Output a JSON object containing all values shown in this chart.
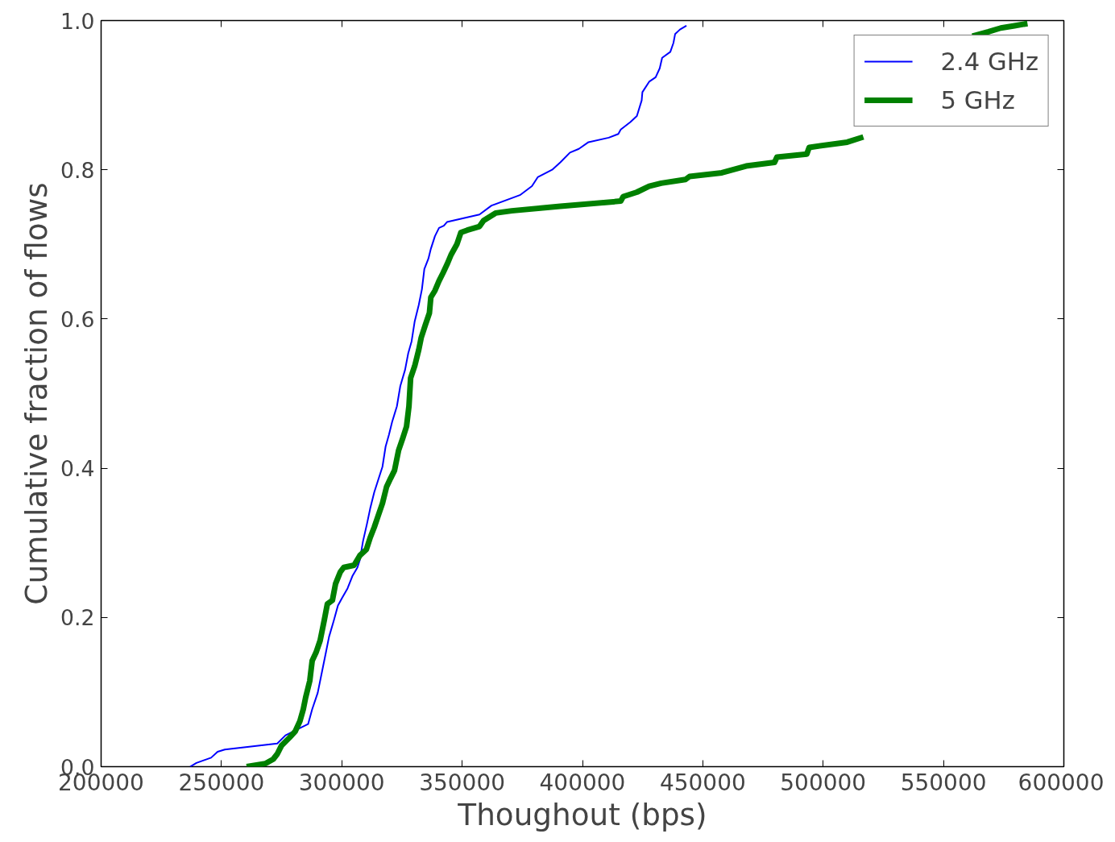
{
  "chart_data": {
    "type": "line",
    "xlabel": "Thoughout (bps)",
    "ylabel": "Cumulative fraction of flows",
    "xlim": [
      200000,
      600000
    ],
    "ylim": [
      0,
      1.0
    ],
    "xticks": [
      200000,
      250000,
      300000,
      350000,
      400000,
      450000,
      500000,
      550000,
      600000
    ],
    "yticks": [
      {
        "value": 0,
        "label": "0.0"
      },
      {
        "value": 0.2,
        "label": "0.2"
      },
      {
        "value": 0.4,
        "label": "0.4"
      },
      {
        "value": 0.6,
        "label": "0.6"
      },
      {
        "value": 0.8,
        "label": "0.8"
      },
      {
        "value": 1.0,
        "label": "1.0"
      }
    ],
    "grid": false,
    "legend": "top right",
    "marker": "none",
    "line_style": "solid",
    "series": [
      {
        "name": "2.4 GHz",
        "color": "#0000ff",
        "x": [
          237000,
          239600,
          245700,
          248400,
          251400,
          273200,
          276600,
          281600,
          286000,
          287700,
          290000,
          291700,
          293400,
          294700,
          296700,
          298400,
          300100,
          302400,
          304500,
          306500,
          307500,
          308800,
          310500,
          311800,
          313500,
          314900,
          316900,
          318200,
          319600,
          320900,
          322900,
          324300,
          326300,
          327600,
          329000,
          330300,
          332000,
          333300,
          334300,
          336000,
          337000,
          338700,
          340400,
          342400,
          343700,
          357200,
          362200,
          374000,
          379000,
          381400,
          387400,
          390800,
          394800,
          398500,
          402500,
          410900,
          414900,
          415900,
          419900,
          422600,
          424600,
          424900,
          427700,
          430400,
          432100,
          433100,
          436500,
          437800,
          438500,
          440500,
          443200
        ],
        "values": [
          0,
          0.005,
          0.012,
          0.02,
          0.023,
          0.031,
          0.042,
          0.05,
          0.057,
          0.077,
          0.099,
          0.126,
          0.153,
          0.174,
          0.196,
          0.216,
          0.226,
          0.239,
          0.256,
          0.267,
          0.277,
          0.302,
          0.326,
          0.346,
          0.368,
          0.382,
          0.402,
          0.429,
          0.445,
          0.462,
          0.483,
          0.51,
          0.532,
          0.554,
          0.57,
          0.597,
          0.619,
          0.64,
          0.667,
          0.681,
          0.694,
          0.711,
          0.722,
          0.725,
          0.73,
          0.74,
          0.752,
          0.766,
          0.778,
          0.79,
          0.8,
          0.81,
          0.823,
          0.828,
          0.837,
          0.843,
          0.848,
          0.854,
          0.864,
          0.872,
          0.893,
          0.904,
          0.918,
          0.924,
          0.936,
          0.95,
          0.958,
          0.97,
          0.982,
          0.988,
          0.993
        ]
      },
      {
        "name": "5 GHz",
        "color": "#008000",
        "x": [
          260450,
          268200,
          271500,
          273200,
          274900,
          278300,
          280600,
          282600,
          284000,
          285000,
          286700,
          287700,
          289300,
          291000,
          292700,
          294000,
          296100,
          297400,
          299400,
          300800,
          305100,
          307500,
          310200,
          311800,
          313500,
          315200,
          316900,
          318600,
          320200,
          321900,
          323600,
          325300,
          326900,
          327900,
          328600,
          330300,
          332000,
          333000,
          334700,
          336400,
          337000,
          338700,
          340400,
          342100,
          343700,
          345400,
          347800,
          349500,
          352100,
          357200,
          358900,
          363900,
          370600,
          390800,
          415900,
          416900,
          422600,
          427700,
          432700,
          442800,
          444500,
          457900,
          468000,
          479800,
          480800,
          493200,
          494200,
          510000,
          516700,
          540000,
          562000,
          568700,
          573800,
          579500,
          584900
        ],
        "values": [
          0,
          0.004,
          0.01,
          0.017,
          0.028,
          0.039,
          0.047,
          0.061,
          0.077,
          0.093,
          0.115,
          0.142,
          0.153,
          0.169,
          0.196,
          0.218,
          0.223,
          0.245,
          0.261,
          0.267,
          0.27,
          0.283,
          0.291,
          0.307,
          0.321,
          0.337,
          0.353,
          0.375,
          0.386,
          0.397,
          0.424,
          0.44,
          0.456,
          0.483,
          0.521,
          0.537,
          0.559,
          0.575,
          0.592,
          0.608,
          0.629,
          0.638,
          0.651,
          0.662,
          0.673,
          0.686,
          0.7,
          0.716,
          0.719,
          0.724,
          0.732,
          0.742,
          0.745,
          0.751,
          0.758,
          0.764,
          0.77,
          0.778,
          0.782,
          0.787,
          0.791,
          0.796,
          0.805,
          0.81,
          0.817,
          0.821,
          0.83,
          0.837,
          0.844,
          null,
          0.979,
          0.985,
          0.99,
          0.993,
          0.996
        ]
      }
    ]
  }
}
